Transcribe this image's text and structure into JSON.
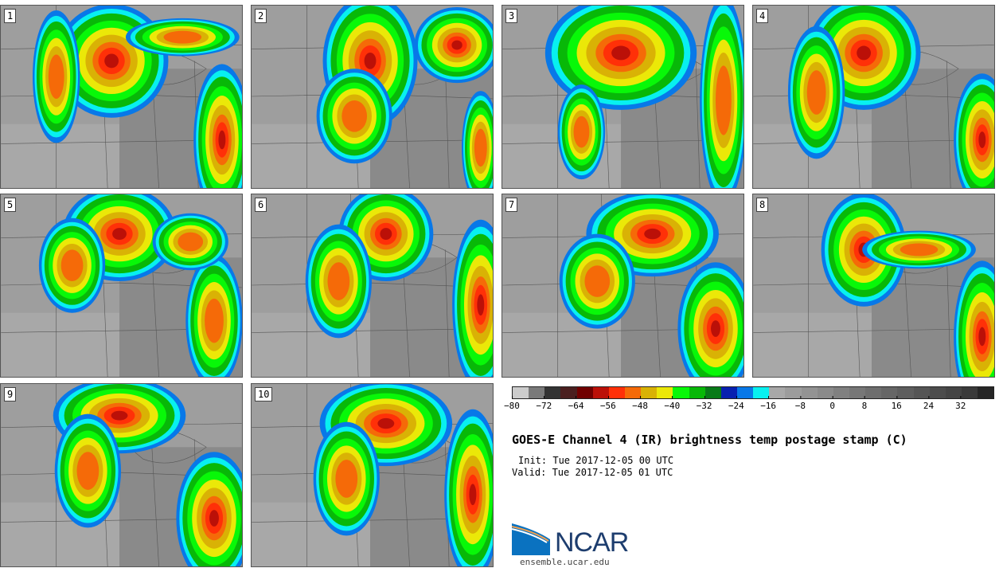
{
  "panels": [
    {
      "label": "1"
    },
    {
      "label": "2"
    },
    {
      "label": "3"
    },
    {
      "label": "4"
    },
    {
      "label": "5"
    },
    {
      "label": "6"
    },
    {
      "label": "7"
    },
    {
      "label": "8"
    },
    {
      "label": "9"
    },
    {
      "label": "10"
    }
  ],
  "colorbar": {
    "colors": [
      "#cccccc",
      "#7a7a7a",
      "#333333",
      "#4a1f1f",
      "#700000",
      "#bb1008",
      "#ff3008",
      "#f56a08",
      "#d9b205",
      "#ebe808",
      "#08f808",
      "#08b808",
      "#087a18",
      "#0820b0",
      "#0878e8",
      "#08f0f0",
      "#a8a8a8",
      "#9c9c9c",
      "#939393",
      "#8a8a8a",
      "#808080",
      "#777777",
      "#6e6e6e",
      "#666666",
      "#5e5e5e",
      "#555555",
      "#4c4c4c",
      "#444444",
      "#3a3a3a",
      "#262626"
    ],
    "ticks": [
      "−80",
      "−72",
      "−64",
      "−56",
      "−48",
      "−40",
      "−32",
      "−24",
      "−16",
      "−8",
      "0",
      "8",
      "16",
      "24",
      "32"
    ]
  },
  "title": "GOES-E Channel 4 (IR) brightness temp postage stamp (C)",
  "init": "Init: Tue 2017-12-05 00 UTC",
  "valid": "Valid: Tue 2017-12-05 01 UTC",
  "logo": {
    "text": "NCAR",
    "url": "ensemble.ucar.edu"
  }
}
